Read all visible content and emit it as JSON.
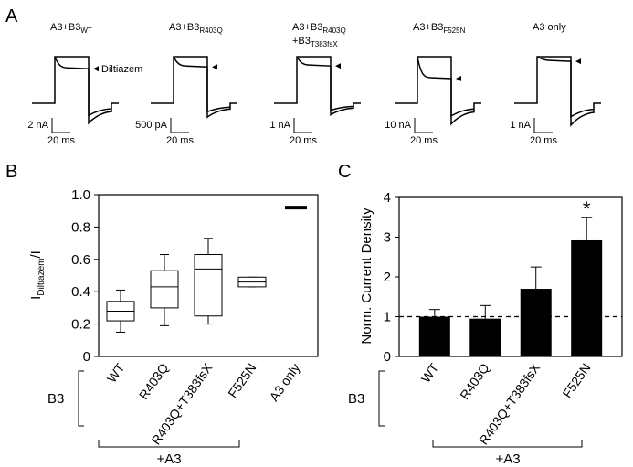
{
  "figure": {
    "panel_a": "A",
    "panel_b": "B",
    "panel_c": "C"
  },
  "traces": [
    {
      "title_main": "A3+B3",
      "title_sub": "WT",
      "title2_main": "",
      "title2_sub": "",
      "scale_y": "2 nA",
      "scale_x": "20 ms",
      "annotation": "Diltiazem",
      "top_level": 1.0,
      "block_level": 0.76,
      "tail_level": 0.86
    },
    {
      "title_main": "A3+B3",
      "title_sub": "R403Q",
      "title2_main": "",
      "title2_sub": "",
      "scale_y": "500 pA",
      "scale_x": "20 ms",
      "annotation": "",
      "top_level": 1.0,
      "block_level": 0.8,
      "tail_level": 0.6
    },
    {
      "title_main": "A3+B3",
      "title_sub": "R403Q",
      "title2_main": "+B3",
      "title2_sub": "T383fsX",
      "scale_y": "1 nA",
      "scale_x": "20 ms",
      "annotation": "",
      "top_level": 1.0,
      "block_level": 0.82,
      "tail_level": 0.5
    },
    {
      "title_main": "A3+B3",
      "title_sub": "F525N",
      "title2_main": "",
      "title2_sub": "",
      "scale_y": "10 nA",
      "scale_x": "20 ms",
      "annotation": "",
      "top_level": 1.0,
      "block_level": 0.55,
      "tail_level": 0.9
    },
    {
      "title_main": "A3 only",
      "title_sub": "",
      "title2_main": "",
      "title2_sub": "",
      "scale_y": "1 nA",
      "scale_x": "20 ms",
      "annotation": "",
      "top_level": 1.0,
      "block_level": 0.92,
      "tail_level": 0.95
    }
  ],
  "chart_data": [
    {
      "type": "boxplot",
      "panel": "B",
      "ylabel_main": "I",
      "ylabel_sub": "Diltiazem",
      "ylabel_tail": "/I",
      "ylim": [
        0,
        1.0
      ],
      "yticks": [
        "0",
        "0.2",
        "0.4",
        "0.6",
        "0.8",
        "1.0"
      ],
      "ytick_values": [
        0,
        0.2,
        0.4,
        0.6,
        0.8,
        1.0
      ],
      "categories": [
        "WT",
        "R403Q",
        "R403Q+T383fsX",
        "F525N",
        "A3 only"
      ],
      "boxes": [
        {
          "min": 0.15,
          "q1": 0.22,
          "median": 0.28,
          "q3": 0.34,
          "max": 0.41
        },
        {
          "min": 0.19,
          "q1": 0.3,
          "median": 0.43,
          "q3": 0.53,
          "max": 0.63
        },
        {
          "min": 0.2,
          "q1": 0.25,
          "median": 0.54,
          "q3": 0.63,
          "max": 0.73
        },
        {
          "min": 0.43,
          "q1": 0.43,
          "median": 0.46,
          "q3": 0.49,
          "max": 0.49
        },
        {
          "min": 0.92,
          "q1": 0.92,
          "median": 0.92,
          "q3": 0.92,
          "max": 0.92
        }
      ],
      "group_label": "B3",
      "bracket_label": "+A3"
    },
    {
      "type": "bar",
      "panel": "C",
      "ylabel": "Norm. Current Density",
      "ylim": [
        0,
        4
      ],
      "yticks": [
        "0",
        "1",
        "2",
        "3",
        "4"
      ],
      "ytick_values": [
        0,
        1,
        2,
        3,
        4
      ],
      "categories": [
        "WT",
        "R403Q",
        "R403Q+T383fsX",
        "F525N"
      ],
      "values": [
        1.0,
        0.95,
        1.7,
        2.92
      ],
      "errors": [
        0.18,
        0.33,
        0.55,
        0.58
      ],
      "reference_line": 1,
      "significance_marker": "*",
      "significance_index": 3,
      "group_label": "B3",
      "bracket_label": "+A3"
    }
  ]
}
